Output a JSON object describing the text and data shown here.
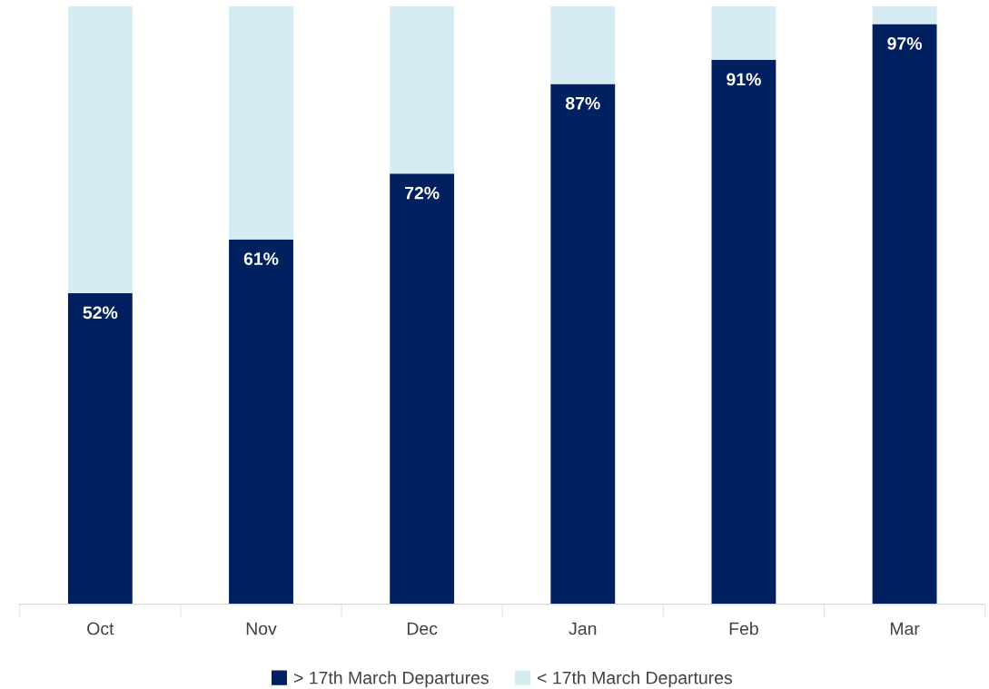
{
  "chart_data": {
    "type": "bar",
    "stacked": true,
    "categories": [
      "Oct",
      "Nov",
      "Dec",
      "Jan",
      "Feb",
      "Mar"
    ],
    "ylim": [
      0,
      100
    ],
    "tick_labels": "x",
    "legend": "bottom",
    "grid": false,
    "series": [
      {
        "name": "> 17th March Departures",
        "color": "#002060",
        "values": [
          52,
          61,
          72,
          87,
          91,
          97
        ],
        "value_labels": [
          "52%",
          "61%",
          "72%",
          "87%",
          "91%",
          "97%"
        ]
      },
      {
        "name": "< 17th March Departures",
        "color": "#d5ecf5",
        "values": [
          48,
          39,
          28,
          13,
          9,
          3
        ]
      }
    ]
  }
}
